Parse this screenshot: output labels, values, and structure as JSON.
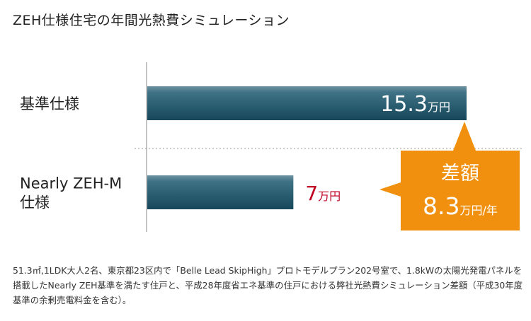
{
  "title": "ZEH仕様住宅の年間光熱費シミュレーション",
  "chart_data": {
    "type": "bar",
    "orientation": "horizontal",
    "unit": "万円",
    "categories": [
      "基準仕様",
      "Nearly ZEH-M 仕様"
    ],
    "category_lines": [
      [
        "基準仕様"
      ],
      [
        "Nearly ZEH-M",
        "仕様"
      ]
    ],
    "values": [
      15.3,
      7
    ],
    "value_labels": [
      "15.3",
      "7"
    ],
    "xlim": [
      0,
      17
    ],
    "colors": {
      "bar": "#23586a",
      "value_highlight": "#c00023",
      "callout": "#f0900e"
    }
  },
  "callout": {
    "title": "差額",
    "value": "8.3",
    "unit": "万円/年"
  },
  "footnote": "51.3㎡,1LDK大人2名、東京都23区内で「Belle Lead SkipHigh」プロトモデルプラン202号室で、1.8kWの太陽光発電パネルを搭載したNearly ZEH基準を満たす住戸と、平成28年度省エネ基準の住戸における弊社光熱費シミュレーション差額（平成30年度基準の余剰売電料金を含む）。"
}
